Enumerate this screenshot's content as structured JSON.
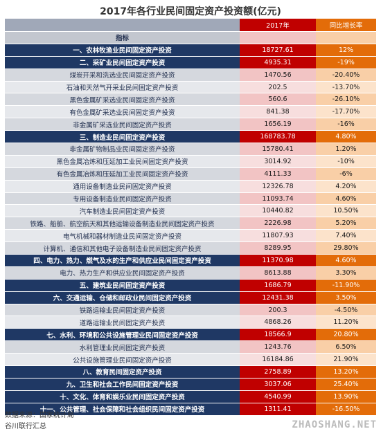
{
  "title": "2017年各行业民间固定资产投资额(亿元)",
  "header": {
    "col_year": "2017年",
    "col_growth": "同比增长率"
  },
  "column_header": {
    "label": "指标"
  },
  "rows": [
    {
      "name": "一、农林牧渔业民间固定资产投资",
      "value": "18727.61",
      "growth": "12%",
      "major": true
    },
    {
      "name": "二、采矿业民间固定资产投资",
      "value": "4935.31",
      "growth": "-19%",
      "major": true
    },
    {
      "name": "煤炭开采和洗选业民间固定资产投资",
      "value": "1470.56",
      "growth": "-20.40%",
      "major": false
    },
    {
      "name": "石油和天然气开采业民间固定资产投资",
      "value": "202.5",
      "growth": "-13.70%",
      "major": false
    },
    {
      "name": "黑色金属矿采选业民间固定资产投资",
      "value": "560.6",
      "growth": "-26.10%",
      "major": false
    },
    {
      "name": "有色金属矿采选业民间固定资产投资",
      "value": "841.38",
      "growth": "-17.70%",
      "major": false
    },
    {
      "name": "非金属矿采选业民间固定资产投资",
      "value": "1656.19",
      "growth": "-16%",
      "major": false
    },
    {
      "name": "三、制造业民间固定资产投资",
      "value": "168783.78",
      "growth": "4.80%",
      "major": true
    },
    {
      "name": "非金属矿物制品业民间固定资产投资",
      "value": "15780.41",
      "growth": "1.20%",
      "major": false
    },
    {
      "name": "黑色金属冶炼和压延加工业民间固定资产投资",
      "value": "3014.92",
      "growth": "-10%",
      "major": false
    },
    {
      "name": "有色金属冶炼和压延加工业民间固定资产投资",
      "value": "4111.33",
      "growth": "-6%",
      "major": false
    },
    {
      "name": "通用设备制造业民间固定资产投资",
      "value": "12326.78",
      "growth": "4.20%",
      "major": false
    },
    {
      "name": "专用设备制造业民间固定资产投资",
      "value": "11093.74",
      "growth": "4.60%",
      "major": false
    },
    {
      "name": "汽车制造业民间固定资产投资",
      "value": "10440.82",
      "growth": "10.50%",
      "major": false
    },
    {
      "name": "铁路、船舶、航空航天和其他运输设备制造业民间固定资产投资",
      "value": "2226.98",
      "growth": "5.20%",
      "major": false
    },
    {
      "name": "电气机械和器材制造业民间固定资产投资",
      "value": "11807.93",
      "growth": "7.40%",
      "major": false
    },
    {
      "name": "计算机、通信和其他电子设备制造业民间固定资产投资",
      "value": "8289.95",
      "growth": "29.80%",
      "major": false
    },
    {
      "name": "四、电力、热力、燃气及水的生产和供应业民间固定资产投资",
      "value": "11370.98",
      "growth": "4.60%",
      "major": true
    },
    {
      "name": "电力、热力生产和供应业民间固定资产投资",
      "value": "8613.88",
      "growth": "3.30%",
      "major": false
    },
    {
      "name": "五、建筑业民间固定资产投资",
      "value": "1686.79",
      "growth": "-11.90%",
      "major": true
    },
    {
      "name": "六、交通运输、仓储和邮政业民间固定资产投资",
      "value": "12431.38",
      "growth": "3.50%",
      "major": true
    },
    {
      "name": "铁路运输业民间固定资产投资",
      "value": "200.3",
      "growth": "-4.50%",
      "major": false
    },
    {
      "name": "道路运输业民间固定资产投资",
      "value": "4868.26",
      "growth": "11.20%",
      "major": false
    },
    {
      "name": "七、水利、环境和公共设施管理业民间固定资产投资",
      "value": "18566.9",
      "growth": "20.80%",
      "major": true
    },
    {
      "name": "水利管理业民间固定资产投资",
      "value": "1243.76",
      "growth": "6.50%",
      "major": false
    },
    {
      "name": "公共设施管理业民间固定资产投资",
      "value": "16184.86",
      "growth": "21.90%",
      "major": false
    },
    {
      "name": "八、教育民间固定资产投资",
      "value": "2758.89",
      "growth": "13.20%",
      "major": true
    },
    {
      "name": "九、卫生和社会工作民间固定资产投资",
      "value": "3037.06",
      "growth": "25.40%",
      "major": true
    },
    {
      "name": "十、文化、体育和娱乐业民间固定资产投资",
      "value": "4540.99",
      "growth": "13.90%",
      "major": true
    },
    {
      "name": "十一、公共管理、社会保障和社会组织民间固定资产投资",
      "value": "1311.41",
      "growth": "-16.50%",
      "major": true
    }
  ],
  "footer": {
    "source": "数据来源：国家统计局",
    "compiled": "谷川联行汇总"
  },
  "watermark": "ZHAOSHANG.NET",
  "colors": {
    "navy": "#1f3864",
    "red": "#c00000",
    "orange": "#e36c09"
  }
}
